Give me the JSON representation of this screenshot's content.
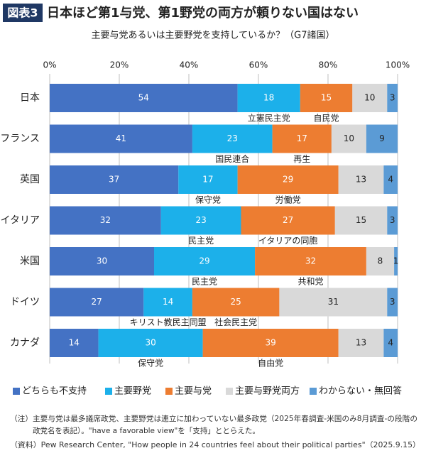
{
  "chart_data": {
    "type": "stacked_barh",
    "figure_label": "図表3",
    "title": "日本ほど第1与党、第1野党の両方が頼りない国はない",
    "subtitle": "主要与党あるいは主要野党を支持しているか？（G7諸国）",
    "categories": [
      "日本",
      "フランス",
      "英国",
      "イタリア",
      "米国",
      "ドイツ",
      "カナダ"
    ],
    "series": [
      {
        "name": "どちらも不支持",
        "color": "#4472c4",
        "values": [
          54,
          41,
          37,
          32,
          30,
          27,
          14
        ]
      },
      {
        "name": "主要野党",
        "color": "#1cb0ea",
        "values": [
          18,
          23,
          17,
          23,
          29,
          14,
          30
        ]
      },
      {
        "name": "主要与党",
        "color": "#ed7d31",
        "values": [
          15,
          17,
          29,
          27,
          32,
          25,
          39
        ]
      },
      {
        "name": "主要与野党両方",
        "color": "#d9d9d9",
        "values": [
          10,
          10,
          13,
          15,
          8,
          31,
          13
        ]
      },
      {
        "name": "わからない・無回答",
        "color": "#5b9bd5",
        "values": [
          3,
          9,
          4,
          3,
          1,
          3,
          4
        ]
      }
    ],
    "opposition_parties": [
      "立憲民主党",
      "国民連合",
      "保守党",
      "民主党",
      "民主党",
      "キリスト教民主同盟",
      "保守党"
    ],
    "ruling_parties": [
      "自民党",
      "再生",
      "労働党",
      "イタリアの同胞",
      "共和党",
      "社会民主党",
      "自由党"
    ],
    "xlim": [
      0,
      100
    ],
    "xticks": [
      {
        "value": 0,
        "label": "0%"
      },
      {
        "value": 20,
        "label": "20%"
      },
      {
        "value": 40,
        "label": "40%"
      },
      {
        "value": 60,
        "label": "60%"
      },
      {
        "value": 80,
        "label": "80%"
      },
      {
        "value": 100,
        "label": "100%"
      }
    ],
    "grid": true,
    "legend": "bottom",
    "notes": [
      "（注）主要与党は最多議席政党、主要野党は連立に加わっていない最多政党（2025年春調査-米国のみ8月調査-の段階の",
      "政党名を表記）。\"have a favorable view\"を「支持」ととらえた。",
      "（資料）Pew Research Center, \"How people in 24 countries feel about their political parties\"（2025.9.15）"
    ]
  }
}
